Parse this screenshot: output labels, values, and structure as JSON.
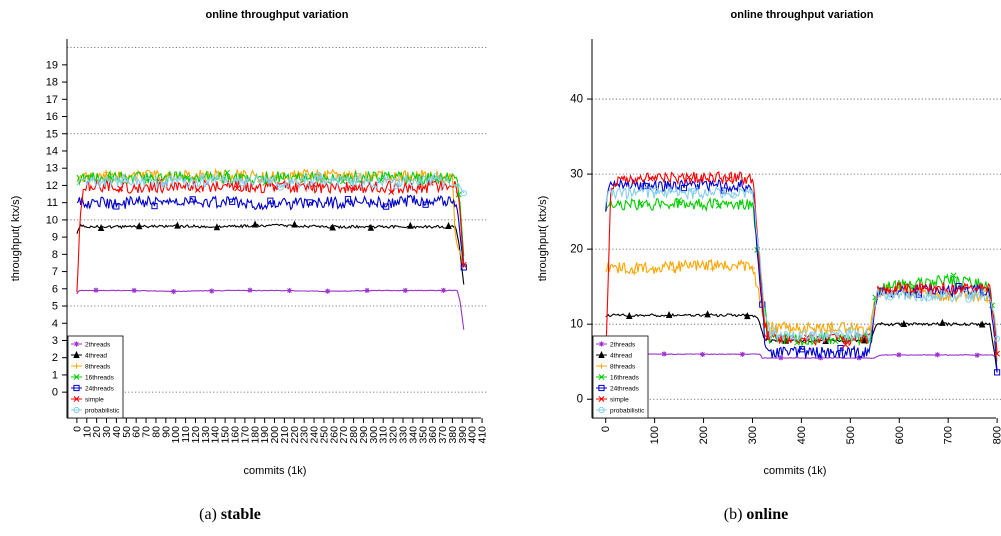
{
  "figure": {
    "captions": [
      {
        "label": "(a)",
        "text": "stable"
      },
      {
        "label": "(b)",
        "text": "online"
      }
    ]
  },
  "chart_data": [
    {
      "type": "line",
      "title": "online throughput variation",
      "xlabel": "commits (1k)",
      "ylabel": "throughput( ktx/s)",
      "xlim": [
        -10,
        415
      ],
      "ylim": [
        -1.5,
        20.5
      ],
      "xticks": [
        0,
        10,
        20,
        30,
        40,
        50,
        60,
        70,
        80,
        90,
        100,
        110,
        120,
        130,
        140,
        150,
        160,
        170,
        180,
        190,
        200,
        210,
        220,
        230,
        240,
        250,
        260,
        270,
        280,
        290,
        300,
        310,
        320,
        330,
        340,
        350,
        360,
        370,
        380,
        390,
        400,
        410
      ],
      "yticks": [
        0,
        1,
        2,
        3,
        4,
        5,
        6,
        7,
        8,
        9,
        10,
        11,
        12,
        13,
        14,
        15,
        16,
        17,
        18,
        19
      ],
      "grid_y": [
        0,
        5,
        10,
        15,
        20
      ],
      "grid": "dotted horizontal",
      "legend_position": "bottom-left",
      "series": [
        {
          "name": "2threads",
          "color": "#9a32cd",
          "marker": "*",
          "x": [
            0,
            2,
            10,
            50,
            100,
            150,
            200,
            250,
            300,
            350,
            385,
            388,
            392
          ],
          "y": [
            5.7,
            5.9,
            5.9,
            5.9,
            5.85,
            5.9,
            5.9,
            5.85,
            5.9,
            5.9,
            5.9,
            5.2,
            3.4
          ]
        },
        {
          "name": "4thread",
          "color": "#000000",
          "marker": "triangle",
          "x": [
            0,
            3,
            10,
            50,
            100,
            150,
            200,
            250,
            300,
            350,
            383,
            387,
            392
          ],
          "y": [
            9.2,
            9.7,
            9.6,
            9.6,
            9.65,
            9.6,
            9.7,
            9.6,
            9.6,
            9.6,
            9.6,
            8.5,
            6.0
          ]
        },
        {
          "name": "8threads",
          "color": "#ffa500",
          "marker": "+",
          "x": [
            0,
            3,
            10,
            50,
            100,
            150,
            200,
            250,
            300,
            350,
            380,
            383,
            387,
            392
          ],
          "y": [
            12.2,
            12.6,
            12.5,
            12.6,
            12.5,
            12.6,
            12.5,
            12.6,
            12.5,
            12.6,
            12.4,
            9.0,
            8.3,
            7.2
          ]
        },
        {
          "name": "16threads",
          "color": "#00cd00",
          "marker": "x",
          "x": [
            0,
            3,
            10,
            50,
            100,
            150,
            200,
            250,
            300,
            350,
            383,
            387,
            392
          ],
          "y": [
            12.6,
            12.4,
            12.5,
            12.4,
            12.5,
            12.4,
            12.5,
            12.4,
            12.5,
            12.4,
            12.5,
            11.5,
            7.5
          ]
        },
        {
          "name": "24threads",
          "color": "#0000cd",
          "marker": "square",
          "x": [
            0,
            3,
            10,
            50,
            100,
            150,
            200,
            250,
            300,
            350,
            382,
            386,
            392
          ],
          "y": [
            11.0,
            11.1,
            11.0,
            11.0,
            11.1,
            11.0,
            10.9,
            11.0,
            11.0,
            11.1,
            11.0,
            10.0,
            7.0
          ]
        },
        {
          "name": "simple",
          "color": "#ff0000",
          "marker": "x",
          "x": [
            0,
            3,
            6,
            10,
            50,
            100,
            150,
            200,
            250,
            300,
            350,
            383,
            387,
            392
          ],
          "y": [
            5.8,
            9.5,
            12.0,
            12.0,
            11.9,
            11.9,
            12.0,
            11.9,
            11.9,
            11.9,
            11.9,
            12.0,
            11.0,
            7.0
          ]
        },
        {
          "name": "probabilistic",
          "color": "#87ceeb",
          "marker": "circle",
          "x": [
            0,
            3,
            10,
            50,
            100,
            150,
            200,
            250,
            300,
            350,
            383,
            387,
            392
          ],
          "y": [
            12.0,
            12.3,
            12.2,
            12.3,
            12.2,
            12.3,
            12.2,
            12.3,
            12.2,
            12.3,
            12.2,
            12.0,
            11.5
          ]
        }
      ]
    },
    {
      "type": "line",
      "title": "online throughput variation",
      "xlabel": "commits (1k)",
      "ylabel": "throughput( ktx/s)",
      "xlim": [
        -28,
        810
      ],
      "ylim": [
        -2.5,
        48
      ],
      "xticks": [
        0,
        100,
        200,
        300,
        400,
        500,
        600,
        700,
        800
      ],
      "yticks": [
        0,
        10,
        20,
        30,
        40
      ],
      "grid_y": [
        0,
        10,
        20,
        30,
        40
      ],
      "grid": "dotted horizontal",
      "legend_position": "bottom-left",
      "series": [
        {
          "name": "2threads",
          "color": "#9a32cd",
          "marker": "*",
          "x": [
            0,
            10,
            100,
            200,
            300,
            315,
            320,
            330,
            400,
            500,
            550,
            560,
            600,
            700,
            790,
            800
          ],
          "y": [
            5.9,
            6.0,
            6.0,
            6.0,
            6.0,
            6.0,
            5.5,
            5.5,
            5.5,
            5.5,
            5.5,
            5.9,
            5.9,
            5.9,
            5.9,
            5.5
          ]
        },
        {
          "name": "4thread",
          "color": "#000000",
          "marker": "triangle",
          "x": [
            0,
            5,
            100,
            200,
            300,
            310,
            325,
            335,
            400,
            500,
            540,
            555,
            600,
            700,
            785,
            795,
            800
          ],
          "y": [
            11.0,
            11.2,
            11.2,
            11.2,
            11.2,
            11.0,
            8.0,
            7.8,
            7.8,
            7.8,
            7.8,
            10.0,
            10.0,
            10.0,
            10.0,
            6.0,
            3.5
          ]
        },
        {
          "name": "8threads",
          "color": "#ffa500",
          "marker": "+",
          "x": [
            0,
            5,
            100,
            200,
            300,
            310,
            325,
            335,
            400,
            500,
            540,
            555,
            600,
            700,
            785,
            795,
            800
          ],
          "y": [
            17.0,
            17.5,
            17.5,
            17.8,
            17.8,
            15.0,
            10.0,
            9.5,
            9.5,
            9.5,
            9.0,
            14.5,
            14.5,
            13.8,
            13.8,
            10.0,
            5.0
          ]
        },
        {
          "name": "16threads",
          "color": "#00cd00",
          "marker": "x",
          "x": [
            0,
            5,
            100,
            200,
            300,
            310,
            325,
            335,
            400,
            500,
            540,
            555,
            600,
            700,
            785,
            795,
            800
          ],
          "y": [
            25.0,
            26.0,
            26.0,
            26.0,
            26.0,
            20.0,
            12.0,
            8.0,
            8.0,
            8.0,
            8.0,
            14.5,
            15.2,
            15.8,
            15.2,
            10.0,
            6.0
          ]
        },
        {
          "name": "24threads",
          "color": "#0000cd",
          "marker": "square",
          "x": [
            0,
            5,
            100,
            200,
            300,
            310,
            325,
            335,
            400,
            500,
            540,
            555,
            600,
            700,
            785,
            795,
            800
          ],
          "y": [
            25.0,
            28.5,
            28.5,
            28.5,
            28.5,
            20.0,
            8.0,
            6.2,
            6.2,
            6.2,
            6.2,
            14.0,
            14.5,
            14.5,
            14.5,
            8.0,
            3.5
          ]
        },
        {
          "name": "simple",
          "color": "#ff0000",
          "marker": "x",
          "x": [
            0,
            5,
            10,
            20,
            100,
            200,
            300,
            310,
            325,
            335,
            400,
            500,
            540,
            555,
            600,
            700,
            785,
            795,
            800
          ],
          "y": [
            5.5,
            15.0,
            27.0,
            29.0,
            29.5,
            29.5,
            29.5,
            22.0,
            10.0,
            8.0,
            8.0,
            8.0,
            8.0,
            14.5,
            14.8,
            14.8,
            14.8,
            10.0,
            6.0
          ]
        },
        {
          "name": "probabilistic",
          "color": "#87ceeb",
          "marker": "circle",
          "x": [
            0,
            5,
            100,
            200,
            300,
            310,
            325,
            335,
            400,
            500,
            540,
            555,
            600,
            700,
            785,
            795,
            800
          ],
          "y": [
            26.0,
            27.5,
            27.5,
            27.5,
            27.5,
            22.0,
            12.0,
            8.5,
            8.5,
            8.5,
            8.5,
            14.0,
            13.8,
            13.8,
            13.8,
            11.0,
            8.0
          ]
        }
      ]
    }
  ]
}
